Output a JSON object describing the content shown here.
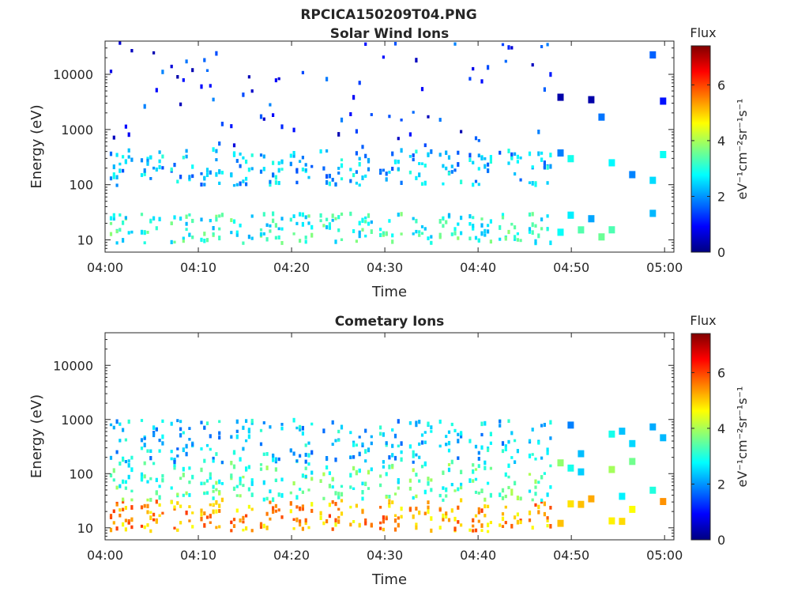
{
  "figure_title": "RPCICA150209T04.PNG",
  "chart_data": [
    {
      "type": "heatmap",
      "title": "Solar Wind Ions",
      "xlabel": "Time",
      "ylabel": "Energy (eV)",
      "y_scale": "log",
      "ylim": [
        6,
        40000
      ],
      "xlim": [
        "04:00",
        "05:01"
      ],
      "x_ticks": [
        "04:00",
        "04:10",
        "04:20",
        "04:30",
        "04:40",
        "04:50",
        "05:00"
      ],
      "y_ticks": [
        "10",
        "100",
        "1000",
        "10000"
      ],
      "grid": false,
      "colorbar": {
        "title": "Flux",
        "label": "eV⁻¹cm⁻²sr⁻¹s⁻¹",
        "ticks": [
          "0",
          "2",
          "4",
          "6"
        ],
        "range": [
          0,
          7.4
        ],
        "colormap": "jet"
      },
      "sweep_start_minutes": [
        0.5,
        3.8,
        7.0,
        10.2,
        13.4,
        16.6,
        19.8,
        23.0,
        26.2,
        29.4,
        32.6,
        35.8,
        39.0,
        42.2,
        45.4
      ],
      "bands": [
        {
          "e_low": 8,
          "e_high": 28,
          "flux": 3.0
        },
        {
          "e_low": 90,
          "e_high": 400,
          "flux": 2.3
        },
        {
          "e_low": 400,
          "e_high": 35000,
          "flux": 1.1
        }
      ]
    },
    {
      "type": "heatmap",
      "title": "Cometary Ions",
      "xlabel": "Time",
      "ylabel": "Energy (eV)",
      "y_scale": "log",
      "ylim": [
        6,
        40000
      ],
      "xlim": [
        "04:00",
        "05:01"
      ],
      "x_ticks": [
        "04:00",
        "04:10",
        "04:20",
        "04:30",
        "04:40",
        "04:50",
        "05:00"
      ],
      "y_ticks": [
        "10",
        "100",
        "1000",
        "10000"
      ],
      "grid": false,
      "colorbar": {
        "title": "Flux",
        "label": "eV⁻¹cm⁻²sr⁻¹s⁻¹",
        "ticks": [
          "0",
          "2",
          "4",
          "6"
        ],
        "range": [
          0,
          7.4
        ],
        "colormap": "jet"
      },
      "sweep_start_minutes": [
        0.5,
        3.8,
        7.0,
        10.2,
        13.4,
        16.6,
        19.8,
        23.0,
        26.2,
        29.4,
        32.6,
        35.8,
        39.0,
        42.2,
        45.4
      ],
      "bands": [
        {
          "e_low": 8,
          "e_high": 30,
          "flux": 5.3
        },
        {
          "e_low": 30,
          "e_high": 150,
          "flux": 3.3
        },
        {
          "e_low": 150,
          "e_high": 900,
          "flux": 2.4
        }
      ]
    }
  ]
}
